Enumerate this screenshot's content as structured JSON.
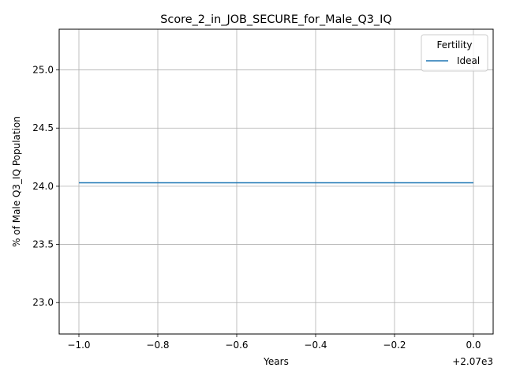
{
  "chart_data": {
    "type": "line",
    "title": "Score_2_in_JOB_SECURE_for_Male_Q3_IQ",
    "xlabel": "Years",
    "ylabel": "% of Male Q3_IQ Population",
    "x_offset_label": "+2.07e3",
    "x": [
      2069,
      2070
    ],
    "series": [
      {
        "name": "Ideal",
        "values": [
          24.03,
          24.03
        ],
        "color": "#1f77b4"
      }
    ],
    "xlim": [
      2068.95,
      2070.05
    ],
    "ylim": [
      22.73,
      25.35
    ],
    "xticks": [
      {
        "value": 2069.0,
        "label": "−1.0"
      },
      {
        "value": 2069.2,
        "label": "−0.8"
      },
      {
        "value": 2069.4,
        "label": "−0.6"
      },
      {
        "value": 2069.6,
        "label": "−0.4"
      },
      {
        "value": 2069.8,
        "label": "−0.2"
      },
      {
        "value": 2070.0,
        "label": "0.0"
      }
    ],
    "yticks": [
      {
        "value": 23.0,
        "label": "23.0"
      },
      {
        "value": 23.5,
        "label": "23.5"
      },
      {
        "value": 24.0,
        "label": "24.0"
      },
      {
        "value": 24.5,
        "label": "24.5"
      },
      {
        "value": 25.0,
        "label": "25.0"
      }
    ],
    "grid": true,
    "legend": {
      "title": "Fertility",
      "placement": "top-right"
    }
  }
}
